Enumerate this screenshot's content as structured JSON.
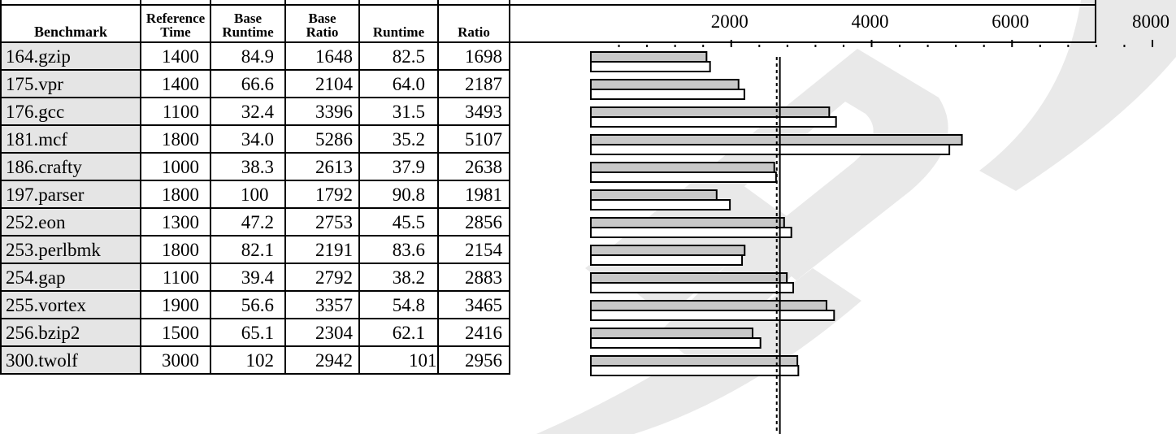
{
  "table": {
    "headers": {
      "benchmark": "Benchmark",
      "ref_time": [
        "Reference",
        "Time"
      ],
      "base_runtime": [
        "Base",
        "Runtime"
      ],
      "base_ratio": [
        "Base",
        "Ratio"
      ],
      "runtime": "Runtime",
      "ratio": "Ratio"
    },
    "rows": [
      {
        "benchmark": "164.gzip",
        "ref_time": "1400",
        "base_runtime": "84.9",
        "base_ratio": "1648",
        "runtime": "82.5",
        "ratio": "1698"
      },
      {
        "benchmark": "175.vpr",
        "ref_time": "1400",
        "base_runtime": "66.6",
        "base_ratio": "2104",
        "runtime": "64.0",
        "ratio": "2187"
      },
      {
        "benchmark": "176.gcc",
        "ref_time": "1100",
        "base_runtime": "32.4",
        "base_ratio": "3396",
        "runtime": "31.5",
        "ratio": "3493"
      },
      {
        "benchmark": "181.mcf",
        "ref_time": "1800",
        "base_runtime": "34.0",
        "base_ratio": "5286",
        "runtime": "35.2",
        "ratio": "5107"
      },
      {
        "benchmark": "186.crafty",
        "ref_time": "1000",
        "base_runtime": "38.3",
        "base_ratio": "2613",
        "runtime": "37.9",
        "ratio": "2638"
      },
      {
        "benchmark": "197.parser",
        "ref_time": "1800",
        "base_runtime": "100",
        "base_ratio": "1792",
        "runtime": "90.8",
        "ratio": "1981"
      },
      {
        "benchmark": "252.eon",
        "ref_time": "1300",
        "base_runtime": "47.2",
        "base_ratio": "2753",
        "runtime": "45.5",
        "ratio": "2856"
      },
      {
        "benchmark": "253.perlbmk",
        "ref_time": "1800",
        "base_runtime": "82.1",
        "base_ratio": "2191",
        "runtime": "83.6",
        "ratio": "2154"
      },
      {
        "benchmark": "254.gap",
        "ref_time": "1100",
        "base_runtime": "39.4",
        "base_ratio": "2792",
        "runtime": "38.2",
        "ratio": "2883"
      },
      {
        "benchmark": "255.vortex",
        "ref_time": "1900",
        "base_runtime": "56.6",
        "base_ratio": "3357",
        "runtime": "54.8",
        "ratio": "3465"
      },
      {
        "benchmark": "256.bzip2",
        "ref_time": "1500",
        "base_runtime": "65.1",
        "base_ratio": "2304",
        "runtime": "62.1",
        "ratio": "2416"
      },
      {
        "benchmark": "300.twolf",
        "ref_time": "3000",
        "base_runtime": "102",
        "base_ratio": "2942",
        "runtime": "101",
        "ratio": "2956"
      }
    ]
  },
  "chart_data": {
    "type": "bar",
    "orientation": "horizontal",
    "categories": [
      "164.gzip",
      "175.vpr",
      "176.gcc",
      "181.mcf",
      "186.crafty",
      "197.parser",
      "252.eon",
      "253.perlbmk",
      "254.gap",
      "255.vortex",
      "256.bzip2",
      "300.twolf"
    ],
    "series": [
      {
        "values": [
          1648,
          2104,
          3396,
          5286,
          2613,
          1792,
          2753,
          2191,
          2792,
          3357,
          2304,
          2942
        ],
        "color": "#c8c8c8"
      },
      {
        "values": [
          1698,
          2187,
          3493,
          5107,
          2638,
          1981,
          2856,
          2154,
          2883,
          3465,
          2416,
          2956
        ],
        "color": "#ffffff"
      }
    ],
    "xlim": [
      0,
      8000
    ],
    "xticks": [
      2000,
      4000,
      6000,
      8000
    ],
    "xtick_labels": [
      "2000",
      "4000",
      "6000",
      "8000"
    ],
    "minor_tick_step": 400,
    "axis_position": "top",
    "reference_lines": [
      {
        "value": 2648,
        "style": "dashed"
      },
      {
        "value": 2693,
        "style": "solid"
      }
    ]
  },
  "watermark": {
    "color": "#e9e9e9"
  }
}
